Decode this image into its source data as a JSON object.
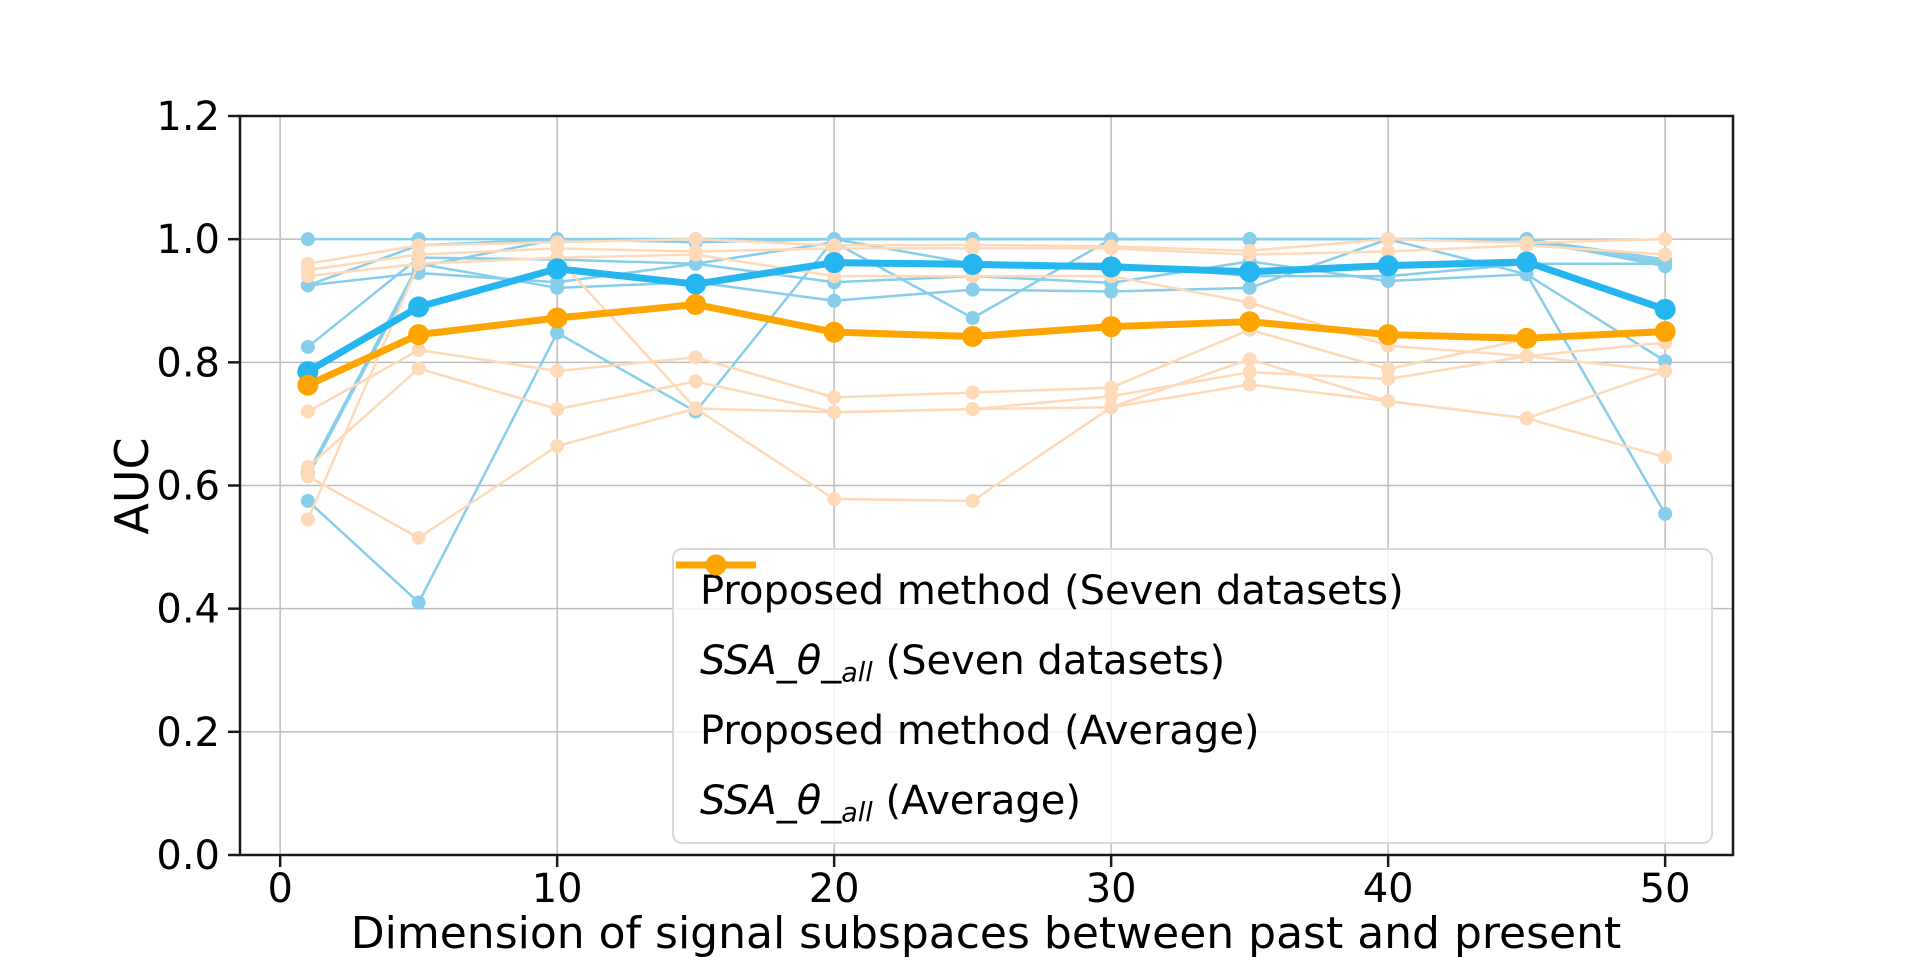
{
  "figure": {
    "background": "#ffffff"
  },
  "chart_data": {
    "type": "line",
    "title": "",
    "xlabel": "Dimension of signal subspaces between past and present",
    "ylabel": "AUC",
    "x": [
      1,
      5,
      10,
      15,
      20,
      25,
      30,
      35,
      40,
      45,
      50
    ],
    "xlim": [
      -1.45,
      52.45
    ],
    "ylim": [
      0.0,
      1.2
    ],
    "xticks": [
      0,
      10,
      20,
      30,
      40,
      50
    ],
    "xtick_labels": [
      "0",
      "10",
      "20",
      "30",
      "40",
      "50"
    ],
    "yticks": [
      0.0,
      0.2,
      0.4,
      0.6,
      0.8,
      1.0,
      1.2
    ],
    "ytick_labels": [
      "0.0",
      "0.2",
      "0.4",
      "0.6",
      "0.8",
      "1.0",
      "1.2"
    ],
    "grid": true,
    "grid_color": "#bdbdbd",
    "axis_color": "#1a1a1a",
    "legend_position": "lower right",
    "series": [
      {
        "name": "Proposed method (Seven datasets)",
        "role": "individual-proposed",
        "color": "#87ceeb",
        "line_width": 2.5,
        "marker_radius": 7,
        "datasets": [
          [
            1.0,
            1.0,
            1.0,
            1.0,
            1.0,
            1.0,
            1.0,
            1.0,
            1.0,
            1.0,
            0.967
          ],
          [
            0.925,
            0.99,
            1.0,
            0.995,
            1.0,
            1.0,
            1.0,
            1.0,
            1.0,
            1.0,
            0.956
          ],
          [
            0.825,
            0.97,
            0.967,
            0.96,
            0.93,
            0.94,
            0.929,
            0.964,
            0.932,
            0.943,
            0.802
          ],
          [
            0.62,
            0.96,
            0.921,
            0.93,
            0.9,
            0.918,
            0.915,
            0.921,
            1.0,
            0.943,
            0.554
          ],
          [
            0.615,
            0.955,
            1.0,
            1.0,
            1.0,
            1.0,
            1.0,
            1.0,
            1.0,
            1.0,
            0.96
          ],
          [
            0.575,
            0.41,
            0.848,
            0.72,
            1.0,
            0.96,
            0.96,
            0.94,
            0.94,
            0.96,
            0.96
          ],
          [
            0.925,
            0.945,
            0.93,
            0.96,
            0.995,
            0.872,
            1.0,
            1.0,
            1.0,
            0.995,
            0.963
          ]
        ]
      },
      {
        "name": "SSA_θ_all (Seven datasets)",
        "role": "individual-ssa",
        "color": "#ffdab9",
        "line_width": 2.5,
        "marker_radius": 7,
        "datasets": [
          [
            0.96,
            0.99,
            0.995,
            1.0,
            0.99,
            0.991,
            0.988,
            0.981,
            1.0,
            0.994,
            1.0
          ],
          [
            0.95,
            0.975,
            0.985,
            0.98,
            0.985,
            0.985,
            0.985,
            0.975,
            0.98,
            0.99,
            0.975
          ],
          [
            0.94,
            0.96,
            0.97,
            0.975,
            0.94,
            0.94,
            0.94,
            0.897,
            0.827,
            0.81,
            0.832
          ],
          [
            0.72,
            0.82,
            0.786,
            0.808,
            0.743,
            0.751,
            0.759,
            0.853,
            0.789,
            0.838,
            0.85
          ],
          [
            0.63,
            0.79,
            0.724,
            0.769,
            0.719,
            0.724,
            0.745,
            0.784,
            0.773,
            0.81,
            0.786
          ],
          [
            0.615,
            0.515,
            0.664,
            0.725,
            0.578,
            0.575,
            0.727,
            0.764,
            0.737,
            0.709,
            0.646
          ],
          [
            0.545,
            0.96,
            0.97,
            0.725,
            0.719,
            0.724,
            0.727,
            0.805,
            0.737,
            0.709,
            0.786
          ]
        ]
      },
      {
        "name": "Proposed method (Average)",
        "role": "average-proposed",
        "color": "#25b5ef",
        "line_width": 7,
        "marker_radius": 10.5,
        "values": [
          0.785,
          0.89,
          0.952,
          0.927,
          0.962,
          0.959,
          0.955,
          0.947,
          0.957,
          0.963,
          0.886
        ]
      },
      {
        "name": "SSA_θ_all (Average)",
        "role": "average-ssa",
        "color": "#ffa502",
        "line_width": 7,
        "marker_radius": 10.5,
        "values": [
          0.763,
          0.845,
          0.872,
          0.894,
          0.849,
          0.842,
          0.858,
          0.866,
          0.845,
          0.839,
          0.85
        ]
      }
    ],
    "legend": {
      "items": [
        {
          "series": 0,
          "label": "Proposed method (Seven datasets)",
          "label_parts": [
            {
              "text": "Proposed method (Seven datasets)"
            }
          ]
        },
        {
          "series": 1,
          "label": "SSA_θ_all (Seven datasets)",
          "label_parts": [
            {
              "text": "SSA_θ_",
              "italic": true
            },
            {
              "text": "all",
              "italic": true,
              "sub": true
            },
            {
              "text": " (Seven datasets)"
            }
          ]
        },
        {
          "series": 2,
          "label": "Proposed method (Average)",
          "label_parts": [
            {
              "text": "Proposed method (Average)"
            }
          ]
        },
        {
          "series": 3,
          "label": "SSA_θ_all (Average)",
          "label_parts": [
            {
              "text": "SSA_θ_",
              "italic": true
            },
            {
              "text": "all",
              "italic": true,
              "sub": true
            },
            {
              "text": " (Average)"
            }
          ]
        }
      ]
    }
  }
}
